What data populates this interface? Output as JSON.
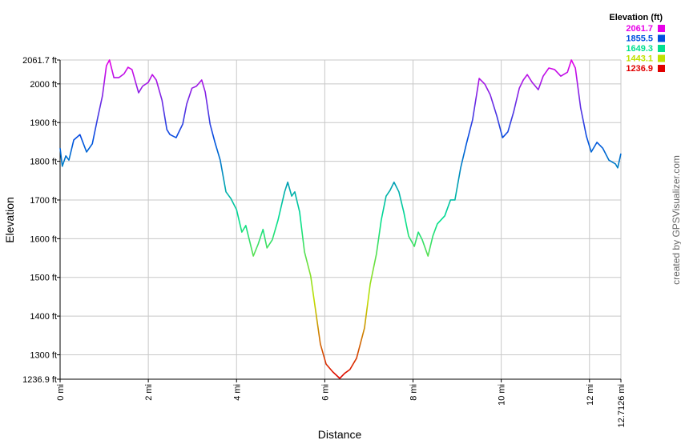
{
  "chart_data": {
    "type": "line",
    "x_label": "Distance",
    "y_label": "Elevation",
    "legend_title": "Elevation (ft)",
    "credit": "created by GPSVisualizer.com",
    "color_scale": [
      {
        "value": 2061.7,
        "color": "#e800e8"
      },
      {
        "value": 1855.5,
        "color": "#0050e0"
      },
      {
        "value": 1649.3,
        "color": "#00e090"
      },
      {
        "value": 1443.1,
        "color": "#c0e000"
      },
      {
        "value": 1236.9,
        "color": "#e00000"
      }
    ],
    "x": [
      0,
      0.05,
      0.13,
      0.2,
      0.31,
      0.45,
      0.6,
      0.73,
      0.85,
      0.96,
      1.05,
      1.12,
      1.22,
      1.33,
      1.45,
      1.54,
      1.63,
      1.78,
      1.87,
      2.0,
      2.09,
      2.18,
      2.31,
      2.42,
      2.49,
      2.63,
      2.78,
      2.87,
      2.99,
      3.09,
      3.21,
      3.29,
      3.4,
      3.51,
      3.63,
      3.76,
      3.87,
      4.0,
      4.12,
      4.21,
      4.38,
      4.49,
      4.6,
      4.69,
      4.81,
      4.94,
      5.09,
      5.16,
      5.25,
      5.32,
      5.43,
      5.54,
      5.68,
      5.81,
      5.9,
      6.03,
      6.18,
      6.34,
      6.45,
      6.57,
      6.72,
      6.9,
      7.03,
      7.17,
      7.28,
      7.39,
      7.48,
      7.57,
      7.68,
      7.79,
      7.9,
      8.03,
      8.12,
      8.21,
      8.34,
      8.45,
      8.55,
      8.72,
      8.85,
      8.95,
      9.08,
      9.21,
      9.35,
      9.5,
      9.63,
      9.75,
      9.9,
      10.03,
      10.15,
      10.28,
      10.41,
      10.5,
      10.59,
      10.7,
      10.84,
      10.95,
      11.08,
      11.21,
      11.35,
      11.5,
      11.59,
      11.68,
      11.8,
      11.93,
      12.04,
      12.17,
      12.3,
      12.44,
      12.59,
      12.64,
      12.7126
    ],
    "values": [
      1834,
      1787,
      1814,
      1803,
      1855,
      1869,
      1824,
      1845,
      1911,
      1969,
      2047,
      2061.7,
      2016,
      2016,
      2026,
      2043,
      2037,
      1977,
      1994,
      2004,
      2024,
      2010,
      1958,
      1882,
      1869,
      1861,
      1896,
      1948,
      1989,
      1994,
      2010,
      1979,
      1896,
      1849,
      1803,
      1721,
      1704,
      1675,
      1617,
      1634,
      1555,
      1586,
      1624,
      1576,
      1597,
      1648,
      1721,
      1746,
      1710,
      1721,
      1669,
      1566,
      1504,
      1400,
      1328,
      1276,
      1256,
      1239,
      1252,
      1262,
      1291,
      1369,
      1483,
      1560,
      1648,
      1710,
      1725,
      1746,
      1721,
      1669,
      1607,
      1580,
      1617,
      1597,
      1555,
      1607,
      1638,
      1659,
      1700,
      1700,
      1783,
      1845,
      1907,
      2014,
      1999,
      1972,
      1917,
      1861,
      1876,
      1927,
      1989,
      2010,
      2024,
      2004,
      1985,
      2020,
      2041,
      2037,
      2020,
      2030,
      2061.7,
      2041,
      1938,
      1865,
      1824,
      1849,
      1834,
      1803,
      1793,
      1783,
      1820
    ],
    "xlim": [
      0,
      12.7126
    ],
    "ylim": [
      1236.9,
      2061.7
    ],
    "xticks": [
      {
        "value": 0,
        "label": "0 mi"
      },
      {
        "value": 2,
        "label": "2 mi"
      },
      {
        "value": 4,
        "label": "4 mi"
      },
      {
        "value": 6,
        "label": "6 mi"
      },
      {
        "value": 8,
        "label": "8 mi"
      },
      {
        "value": 10,
        "label": "10 mi"
      },
      {
        "value": 12,
        "label": "12 mi"
      },
      {
        "value": 12.7126,
        "label": "12.7126 mi"
      }
    ],
    "yticks": [
      {
        "value": 1236.9,
        "label": "1236.9 ft"
      },
      {
        "value": 1300,
        "label": "1300 ft"
      },
      {
        "value": 1400,
        "label": "1400 ft"
      },
      {
        "value": 1500,
        "label": "1500 ft"
      },
      {
        "value": 1600,
        "label": "1600 ft"
      },
      {
        "value": 1700,
        "label": "1700 ft"
      },
      {
        "value": 1800,
        "label": "1800 ft"
      },
      {
        "value": 1900,
        "label": "1900 ft"
      },
      {
        "value": 2000,
        "label": "2000 ft"
      },
      {
        "value": 2061.7,
        "label": "2061.7 ft"
      }
    ],
    "grid": true
  }
}
